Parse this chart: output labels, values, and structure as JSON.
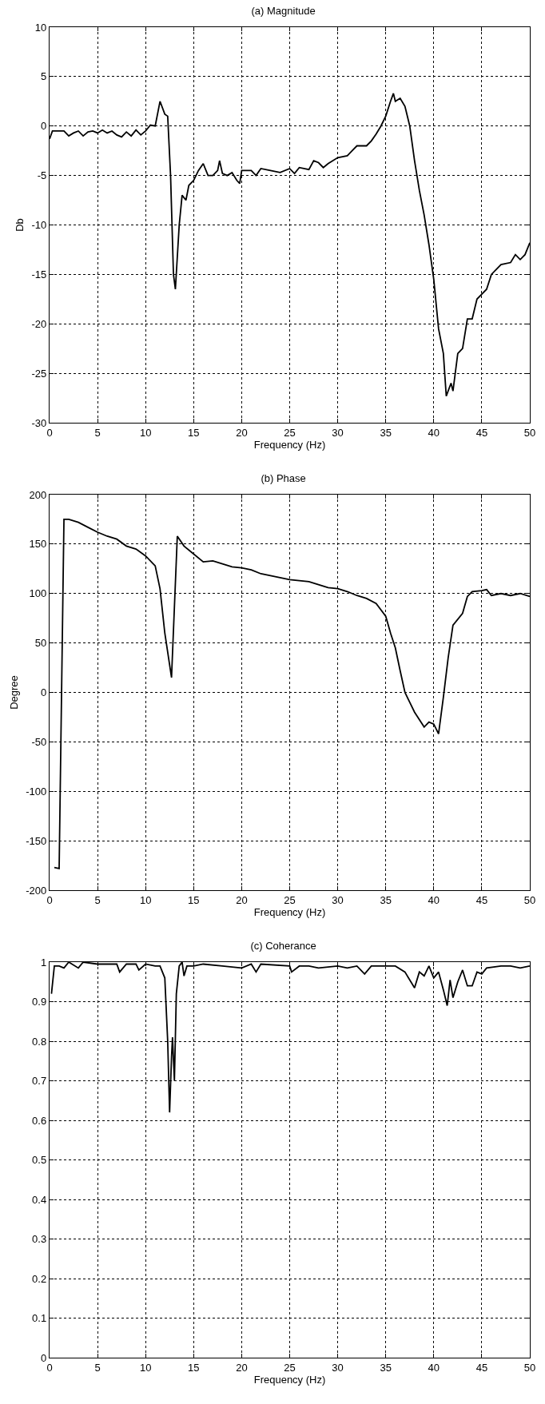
{
  "chart_data": [
    {
      "type": "line",
      "title": "(a) Magnitude",
      "xlabel": "Frequency (Hz)",
      "ylabel": "Db",
      "xlim": [
        0,
        50
      ],
      "xticks": [
        0,
        5,
        10,
        15,
        20,
        25,
        30,
        35,
        40,
        45,
        50
      ],
      "ylim": [
        -30,
        10
      ],
      "yticks": [
        -30,
        -25,
        -20,
        -15,
        -10,
        -5,
        0,
        5,
        10
      ],
      "grid": true,
      "line_style": "solid",
      "x": [
        0,
        0.3,
        1,
        1.5,
        2,
        2.5,
        3,
        3.5,
        4,
        4.5,
        5,
        5.5,
        6,
        6.5,
        7,
        7.5,
        8,
        8.5,
        9,
        9.5,
        10,
        10.5,
        11,
        11.5,
        12,
        12.3,
        12.6,
        12.9,
        13.1,
        13.5,
        13.8,
        14.2,
        14.5,
        15,
        15.5,
        16,
        16.5,
        17,
        17.5,
        17.7,
        18,
        18.5,
        19,
        19.5,
        19.8,
        20,
        21,
        21.5,
        22,
        23,
        24,
        25,
        25.5,
        26,
        27,
        27.5,
        28,
        28.5,
        29,
        30,
        31,
        31.5,
        32,
        33,
        33.5,
        34,
        34.5,
        35,
        35.5,
        35.8,
        36,
        36.5,
        37,
        37.5,
        38,
        38.5,
        39,
        39.5,
        40,
        40.5,
        41,
        41.3,
        41.8,
        42,
        42.5,
        43,
        43.5,
        44,
        44.5,
        45,
        45.5,
        46,
        47,
        48,
        48.5,
        49,
        49.5,
        50
      ],
      "series": [
        {
          "color": "#000000",
          "values": [
            -1.3,
            -0.5,
            -0.5,
            -0.5,
            -1,
            -0.7,
            -0.5,
            -1,
            -0.6,
            -0.5,
            -0.7,
            -0.4,
            -0.7,
            -0.5,
            -0.9,
            -1.1,
            -0.6,
            -1,
            -0.4,
            -0.9,
            -0.5,
            0.1,
            0,
            2.5,
            1.2,
            1,
            -5,
            -15,
            -16.5,
            -10,
            -7,
            -7.5,
            -6,
            -5.5,
            -4.5,
            -3.8,
            -5,
            -5,
            -4.5,
            -3.5,
            -4.8,
            -5,
            -4.7,
            -5.5,
            -5.8,
            -4.5,
            -4.5,
            -5,
            -4.3,
            -4.5,
            -4.7,
            -4.3,
            -4.8,
            -4.2,
            -4.4,
            -3.5,
            -3.7,
            -4.2,
            -3.8,
            -3.2,
            -3,
            -2.5,
            -2,
            -2,
            -1.5,
            -0.8,
            0,
            1,
            2.5,
            3.3,
            2.5,
            2.8,
            2,
            0,
            -3.5,
            -6.5,
            -9,
            -12,
            -15.5,
            -20.5,
            -23,
            -27.3,
            -26,
            -26.8,
            -23,
            -22.5,
            -19.5,
            -19.5,
            -17.5,
            -17,
            -16.5,
            -15,
            -14,
            -13.8,
            -13,
            -13.5,
            -13,
            -11.8
          ]
        }
      ]
    },
    {
      "type": "line",
      "title": "(b) Phase",
      "xlabel": "Frequency (Hz)",
      "ylabel": "Degree",
      "xlim": [
        0,
        50
      ],
      "xticks": [
        0,
        5,
        10,
        15,
        20,
        25,
        30,
        35,
        40,
        45,
        50
      ],
      "ylim": [
        -200,
        200
      ],
      "yticks": [
        -200,
        -150,
        -100,
        -50,
        0,
        50,
        100,
        150,
        200
      ],
      "grid": true,
      "line_style": "solid",
      "x": [
        0.5,
        1,
        1.5,
        2,
        3,
        4,
        5,
        6,
        7,
        8,
        9,
        10,
        11,
        11.5,
        12,
        12.7,
        13.3,
        14,
        15,
        16,
        17,
        18,
        19,
        20,
        21,
        22,
        23,
        24,
        25,
        26,
        27,
        28,
        29,
        30,
        31,
        32,
        33,
        34,
        35,
        35.5,
        36,
        36.5,
        37,
        37.5,
        38,
        39,
        39.5,
        40,
        40.5,
        41,
        41.5,
        42,
        43,
        43.5,
        44,
        45,
        45.5,
        46,
        47,
        48,
        49,
        50
      ],
      "series": [
        {
          "color": "#000000",
          "values": [
            -177,
            -178,
            175,
            175,
            172,
            167,
            162,
            158,
            155,
            148,
            145,
            138,
            128,
            105,
            60,
            15,
            158,
            148,
            140,
            132,
            133,
            130,
            127,
            126,
            124,
            120,
            118,
            116,
            114,
            113,
            112,
            109,
            106,
            105,
            102,
            98,
            95,
            90,
            77,
            60,
            45,
            22,
            0,
            -10,
            -20,
            -35,
            -30,
            -32,
            -42,
            -5,
            35,
            68,
            80,
            97,
            102,
            103,
            104,
            98,
            100,
            98,
            100,
            97
          ]
        }
      ]
    },
    {
      "type": "line",
      "title": "(c) Coherance",
      "xlabel": "Frequency (Hz)",
      "xlim": [
        0,
        50
      ],
      "xticks": [
        0,
        5,
        10,
        15,
        20,
        25,
        30,
        35,
        40,
        45,
        50
      ],
      "ylim": [
        0,
        1
      ],
      "yticks": [
        0,
        0.1,
        0.2,
        0.3,
        0.4,
        0.5,
        0.6,
        0.7,
        0.8,
        0.9,
        1
      ],
      "grid": true,
      "line_style": "solid",
      "x": [
        0.2,
        0.5,
        1,
        1.5,
        2,
        3,
        3.5,
        5,
        7,
        7.3,
        8,
        9,
        9.3,
        10,
        11,
        11.5,
        12,
        12.3,
        12.5,
        12.7,
        12.8,
        13,
        13.2,
        13.5,
        13.8,
        14,
        14.3,
        15,
        16,
        18,
        20,
        21,
        21.5,
        22,
        25,
        25.2,
        26,
        27,
        28,
        30,
        31,
        32,
        32.8,
        33.5,
        35,
        36,
        37,
        38,
        38.5,
        39,
        39.5,
        40,
        40.5,
        41,
        41.4,
        41.7,
        42,
        42.5,
        43,
        43.5,
        44,
        44.5,
        45,
        45.5,
        47,
        48,
        49,
        50
      ],
      "series": [
        {
          "color": "#000000",
          "values": [
            0.92,
            0.99,
            0.99,
            0.985,
            1,
            0.985,
            1,
            0.995,
            0.995,
            0.975,
            0.995,
            0.995,
            0.98,
            0.995,
            0.99,
            0.99,
            0.96,
            0.8,
            0.62,
            0.76,
            0.81,
            0.7,
            0.92,
            0.99,
            1,
            0.965,
            0.99,
            0.99,
            0.995,
            0.99,
            0.985,
            0.995,
            0.975,
            0.995,
            0.99,
            0.975,
            0.99,
            0.99,
            0.985,
            0.99,
            0.985,
            0.99,
            0.97,
            0.99,
            0.99,
            0.99,
            0.975,
            0.935,
            0.975,
            0.965,
            0.99,
            0.96,
            0.975,
            0.93,
            0.89,
            0.955,
            0.91,
            0.95,
            0.98,
            0.94,
            0.94,
            0.975,
            0.97,
            0.985,
            0.99,
            0.99,
            0.985,
            0.99
          ]
        }
      ]
    }
  ]
}
